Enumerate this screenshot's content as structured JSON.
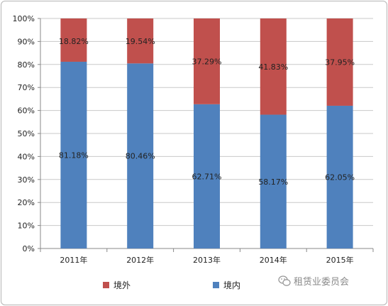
{
  "chart_data": {
    "type": "bar",
    "stacked": true,
    "categories": [
      "2011年",
      "2012年",
      "2013年",
      "2014年",
      "2015年"
    ],
    "series": [
      {
        "name": "境内",
        "color": "#4f81bd",
        "values": [
          81.18,
          80.46,
          62.71,
          58.17,
          62.05
        ],
        "labels": [
          "81.18%",
          "80.46%",
          "62.71%",
          "58.17%",
          "62.05%"
        ]
      },
      {
        "name": "境外",
        "color": "#c0504d",
        "values": [
          18.82,
          19.54,
          37.29,
          41.83,
          37.95
        ],
        "labels": [
          "18.82%",
          "19.54%",
          "37.29%",
          "41.83%",
          "37.95%"
        ]
      }
    ],
    "ylim": [
      0,
      100
    ],
    "yticks": [
      "0%",
      "10%",
      "20%",
      "30%",
      "40%",
      "50%",
      "60%",
      "70%",
      "80%",
      "90%",
      "100%"
    ],
    "grid": true,
    "legend_position": "bottom"
  },
  "legend": {
    "item1": "境外",
    "item2": "境内"
  },
  "watermark": {
    "text": "租赁业委员会"
  }
}
